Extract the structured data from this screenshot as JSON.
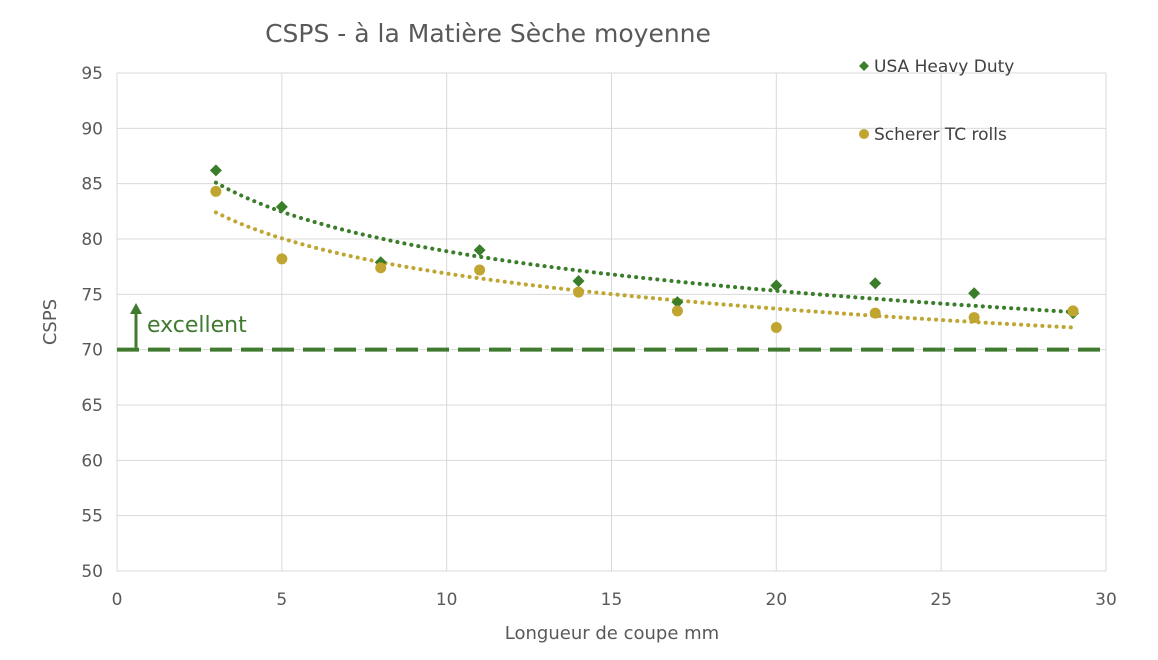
{
  "colors": {
    "green": "#3a7d2a",
    "gold": "#c0a531",
    "threshold": "#3f7a2f",
    "grid": "#d9d9d9",
    "text": "#595959"
  },
  "chart_data": {
    "type": "scatter",
    "title": "CSPS - à la Matière Sèche moyenne",
    "xlabel": "Longueur de coupe mm",
    "ylabel": "CSPS",
    "xlim": [
      0,
      30
    ],
    "ylim": [
      50,
      95
    ],
    "x_ticks": [
      0,
      5,
      10,
      15,
      20,
      25,
      30
    ],
    "y_ticks": [
      50,
      55,
      60,
      65,
      70,
      75,
      80,
      85,
      90,
      95
    ],
    "grid": true,
    "legend_position": "top-right",
    "series": [
      {
        "name": "USA Heavy Duty",
        "marker": "diamond",
        "color": "#3a7d2a",
        "x": [
          3,
          5,
          8,
          11,
          14,
          17,
          20,
          23,
          26,
          29
        ],
        "y": [
          86.2,
          82.9,
          77.9,
          79.0,
          76.2,
          74.3,
          75.8,
          76.0,
          75.1,
          73.3
        ],
        "trendline": {
          "type": "logarithmic",
          "x_start": 3,
          "x_end": 29,
          "y_start": 85.1,
          "y_end": 73.4
        }
      },
      {
        "name": "Scherer TC rolls",
        "marker": "circle",
        "color": "#c0a531",
        "x": [
          3,
          5,
          8,
          11,
          14,
          17,
          20,
          23,
          26,
          29
        ],
        "y": [
          84.3,
          78.2,
          77.4,
          77.2,
          75.2,
          73.5,
          72.0,
          73.3,
          72.9,
          73.5
        ],
        "trendline": {
          "type": "logarithmic",
          "x_start": 3,
          "x_end": 29,
          "y_start": 82.4,
          "y_end": 72.0
        }
      }
    ],
    "reference_line": {
      "y": 70,
      "style": "dashed",
      "color": "#3f7a2f"
    },
    "annotation": {
      "text": "excellent",
      "arrow": "up"
    }
  }
}
